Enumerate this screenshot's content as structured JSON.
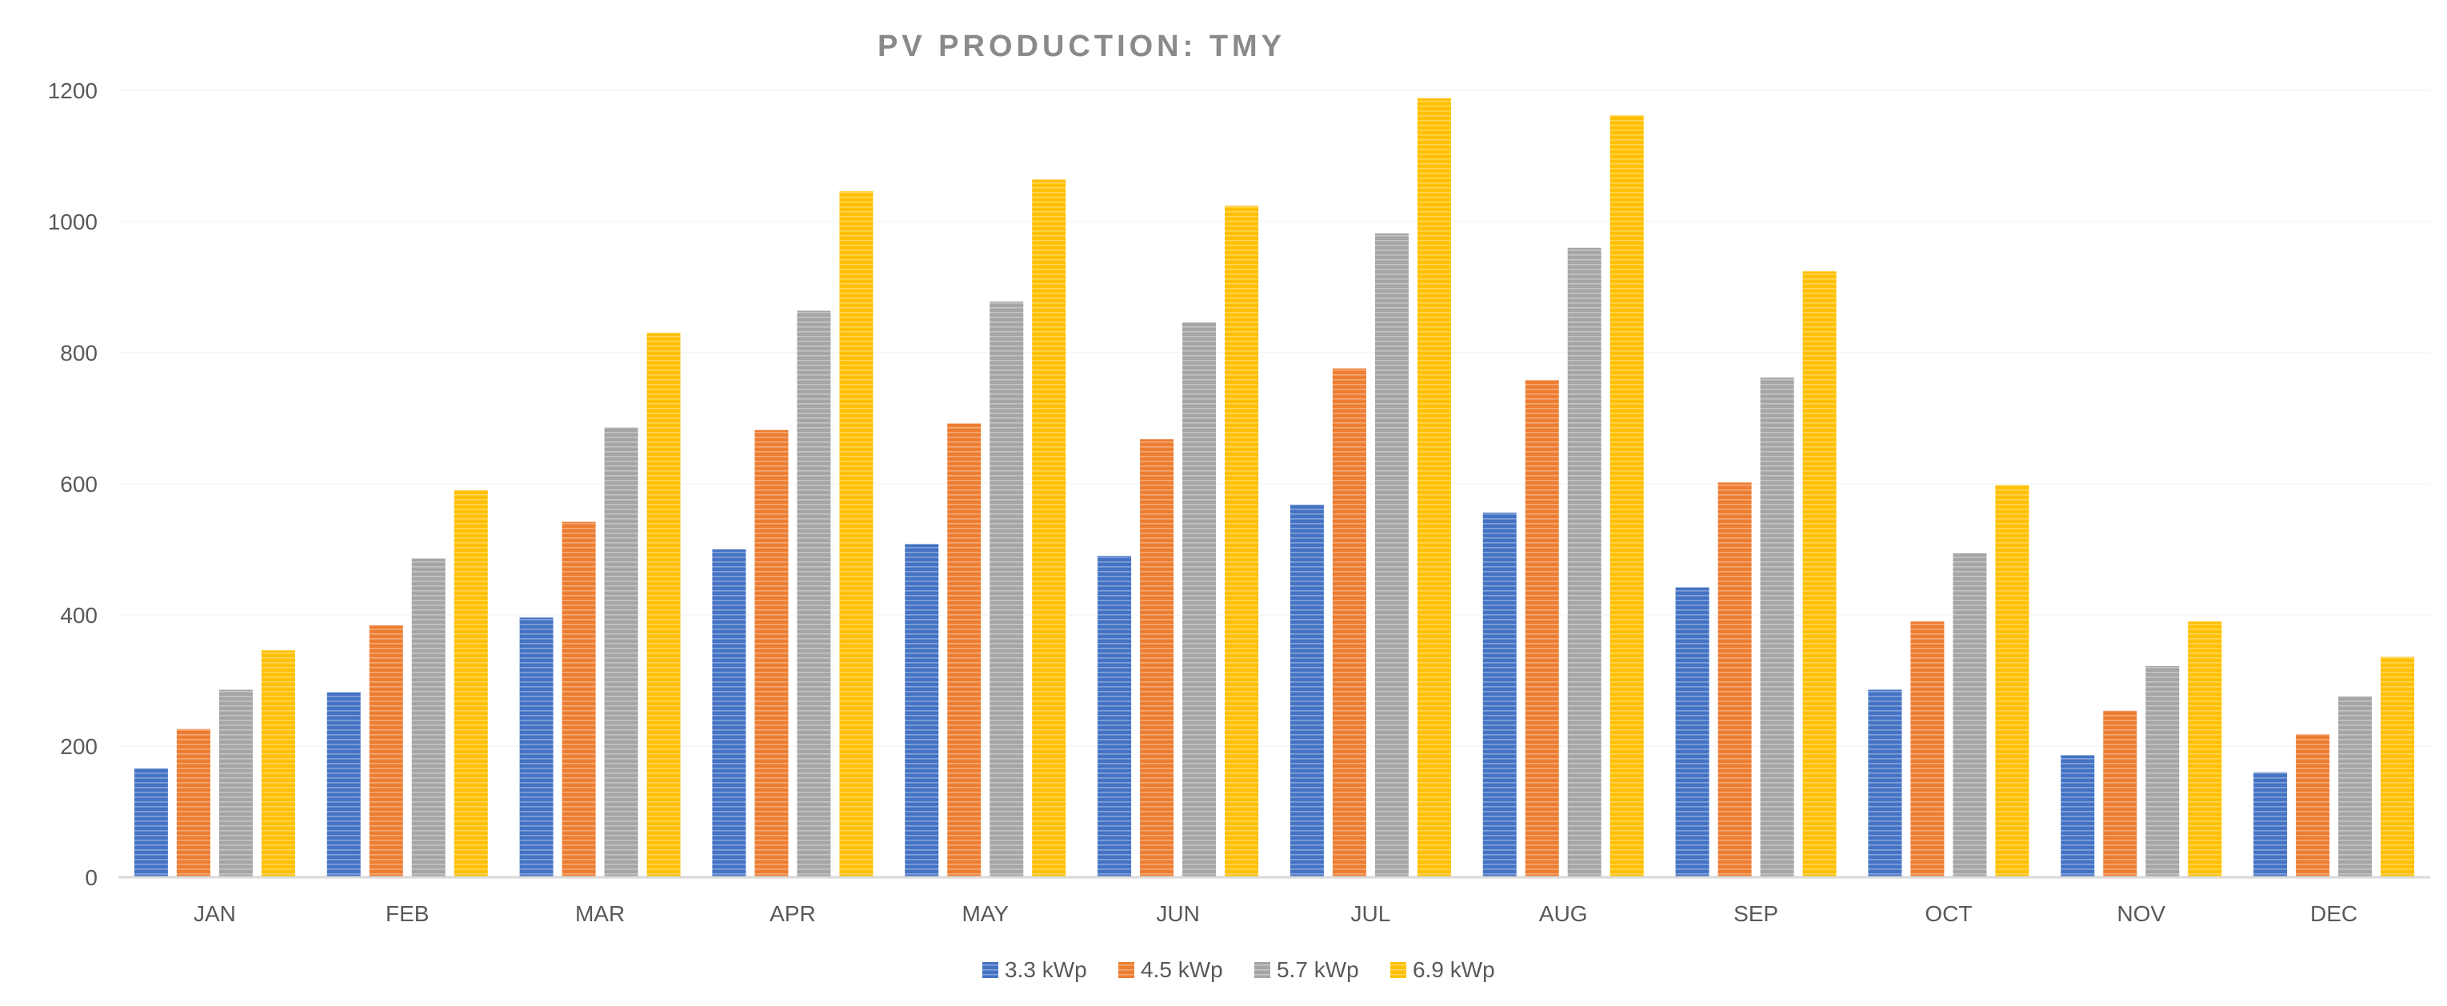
{
  "chart_data": {
    "type": "bar",
    "title": "PV PRODUCTION: TMY",
    "xlabel": "",
    "ylabel": "",
    "ylim": [
      0,
      1200
    ],
    "yticks": [
      0,
      200,
      400,
      600,
      800,
      1000,
      1200
    ],
    "categories": [
      "JAN",
      "FEB",
      "MAR",
      "APR",
      "MAY",
      "JUN",
      "JUL",
      "AUG",
      "SEP",
      "OCT",
      "NOV",
      "DEC"
    ],
    "series": [
      {
        "name": "3.3 kWp",
        "color": "#4472c4",
        "values": [
          166,
          282,
          396,
          500,
          508,
          490,
          568,
          556,
          442,
          286,
          186,
          160
        ]
      },
      {
        "name": "4.5 kWp",
        "color": "#ed7d31",
        "values": [
          226,
          384,
          542,
          682,
          692,
          668,
          776,
          758,
          602,
          390,
          254,
          218
        ]
      },
      {
        "name": "5.7 kWp",
        "color": "#a5a5a5",
        "values": [
          286,
          486,
          686,
          864,
          878,
          846,
          982,
          960,
          762,
          494,
          322,
          276
        ]
      },
      {
        "name": "6.9 kWp",
        "color": "#ffc000",
        "values": [
          346,
          590,
          830,
          1046,
          1064,
          1024,
          1188,
          1162,
          924,
          598,
          390,
          336
        ]
      }
    ],
    "grid": true,
    "legend_position": "bottom"
  }
}
